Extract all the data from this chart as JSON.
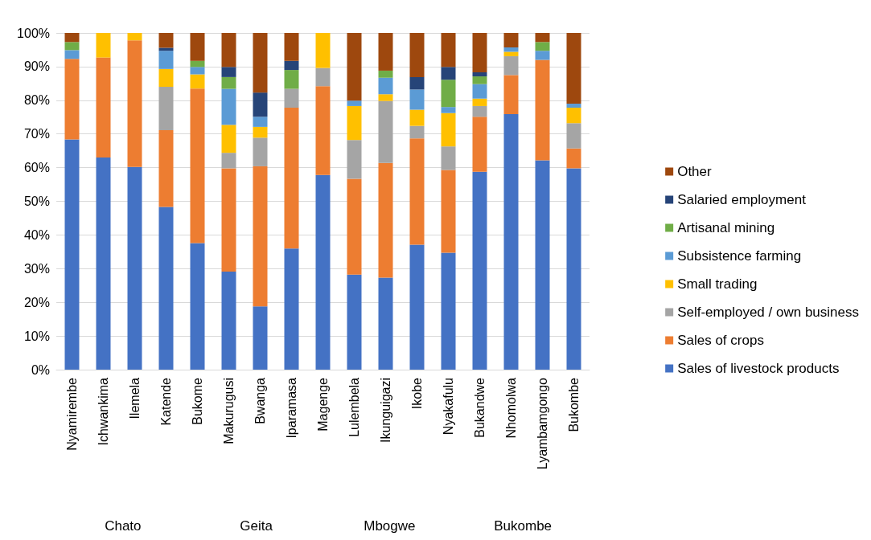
{
  "chart_data": {
    "type": "bar",
    "stacked": true,
    "categories": [
      "Nyamirembe",
      "Ichwankima",
      "Ilemela",
      "Katende",
      "Bukome",
      "Makurugusi",
      "Bwanga",
      "Iparamasa",
      "Magenge",
      "Lulembela",
      "Ikunguigazi",
      "Ikobe",
      "Nyakafulu",
      "Bukandwe",
      "Nhomolwa",
      "Lyambamgongo",
      "Bukombe"
    ],
    "series": [
      {
        "name": "Sales of livestock products",
        "color": "#4472c4",
        "values": [
          68.4,
          63.0,
          60.2,
          48.3,
          37.6,
          29.1,
          18.8,
          36.0,
          57.8,
          28.2,
          27.3,
          37.1,
          34.7,
          58.8,
          75.9,
          62.2,
          59.8
        ]
      },
      {
        "name": "Sales of crops",
        "color": "#ed7d31",
        "values": [
          23.9,
          29.7,
          37.6,
          22.8,
          45.9,
          30.7,
          41.6,
          41.8,
          26.4,
          28.5,
          34.1,
          31.6,
          24.6,
          16.3,
          11.6,
          29.8,
          5.9
        ]
      },
      {
        "name": "Self-employed / own business",
        "color": "#a5a5a5",
        "values": [
          0,
          0,
          0,
          12.9,
          0,
          4.6,
          8.5,
          5.6,
          5.4,
          11.5,
          18.4,
          3.7,
          7.0,
          3.2,
          5.6,
          0,
          7.5
        ]
      },
      {
        "name": "Small trading",
        "color": "#ffc000",
        "values": [
          0,
          7.3,
          2.2,
          5.3,
          4.2,
          8.3,
          3.2,
          0,
          10.4,
          10.1,
          2.0,
          4.8,
          9.9,
          2.2,
          1.3,
          0,
          4.6
        ]
      },
      {
        "name": "Subsistence farming",
        "color": "#5b9bd5",
        "values": [
          2.6,
          0,
          0,
          5.4,
          2.2,
          10.7,
          3.0,
          0,
          0,
          1.6,
          4.9,
          6.0,
          1.8,
          4.3,
          1.3,
          2.7,
          1.2
        ]
      },
      {
        "name": "Artisanal mining",
        "color": "#70ad47",
        "values": [
          2.4,
          0,
          0,
          0,
          1.8,
          3.5,
          0,
          5.6,
          0,
          0,
          2.1,
          0,
          8.1,
          2.3,
          0,
          2.6,
          0
        ]
      },
      {
        "name": "Salaried employment",
        "color": "#264478",
        "values": [
          0,
          0,
          0,
          0.9,
          0,
          3.0,
          7.2,
          2.7,
          0,
          0,
          0,
          3.7,
          3.8,
          1.2,
          0,
          0,
          0
        ]
      },
      {
        "name": "Other",
        "color": "#9e480e",
        "values": [
          2.7,
          0,
          0,
          4.4,
          8.3,
          10.1,
          17.7,
          8.3,
          0,
          20.1,
          11.2,
          13.1,
          10.1,
          11.7,
          4.3,
          2.7,
          21.0
        ]
      }
    ],
    "ylim": [
      0,
      100
    ],
    "yticks": [
      {
        "value": 0,
        "label": "0%"
      },
      {
        "value": 10,
        "label": "10%"
      },
      {
        "value": 20,
        "label": "20%"
      },
      {
        "value": 30,
        "label": "30%"
      },
      {
        "value": 40,
        "label": "40%"
      },
      {
        "value": 50,
        "label": "50%"
      },
      {
        "value": 60,
        "label": "60%"
      },
      {
        "value": 70,
        "label": "70%"
      },
      {
        "value": 80,
        "label": "80%"
      },
      {
        "value": 90,
        "label": "90%"
      },
      {
        "value": 100,
        "label": "100%"
      }
    ],
    "grid": "y",
    "legend": "right",
    "annotations": [
      "Chato",
      "Geita",
      "Mbogwe",
      "Bukombe"
    ]
  }
}
